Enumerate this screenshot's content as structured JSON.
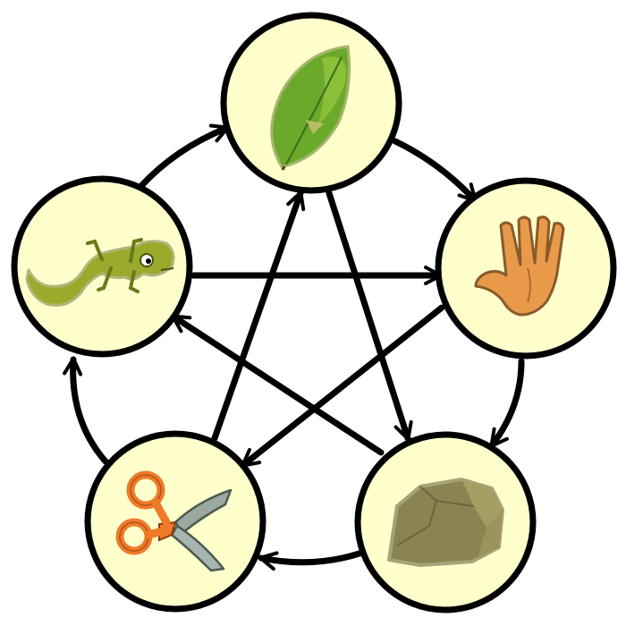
{
  "diagram": {
    "nodes": [
      {
        "id": "paper",
        "icon": "leaf-icon"
      },
      {
        "id": "spock",
        "icon": "vulcan-hand-icon"
      },
      {
        "id": "rock",
        "icon": "rock-icon"
      },
      {
        "id": "scissors",
        "icon": "scissors-icon"
      },
      {
        "id": "lizard",
        "icon": "lizard-icon"
      }
    ],
    "edges": [
      {
        "from": "paper",
        "to": "spock"
      },
      {
        "from": "spock",
        "to": "rock"
      },
      {
        "from": "rock",
        "to": "scissors"
      },
      {
        "from": "scissors",
        "to": "lizard"
      },
      {
        "from": "lizard",
        "to": "paper"
      },
      {
        "from": "paper",
        "to": "rock"
      },
      {
        "from": "rock",
        "to": "lizard"
      },
      {
        "from": "lizard",
        "to": "spock"
      },
      {
        "from": "spock",
        "to": "scissors"
      },
      {
        "from": "scissors",
        "to": "paper"
      }
    ],
    "colors": {
      "node_fill": "#ffffcc",
      "node_stroke": "#000000",
      "arrow": "#000000"
    }
  }
}
